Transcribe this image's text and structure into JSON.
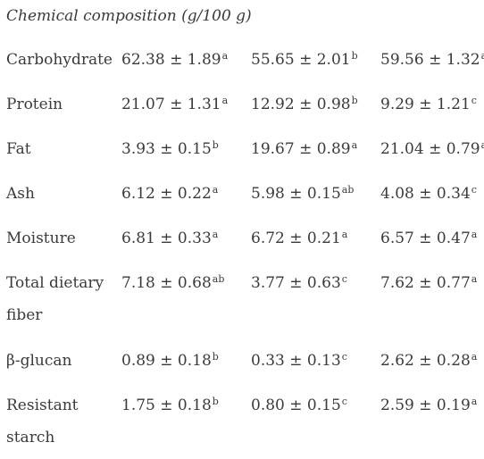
{
  "caption": "Chemical composition (g/100 g)",
  "rows": [
    {
      "label": "Carbohydrate",
      "values": [
        {
          "value": "62.38 ± 1.89",
          "sup": "a"
        },
        {
          "value": "55.65 ± 2.01",
          "sup": "b"
        },
        {
          "value": "59.56 ± 1.32",
          "sup": "ab"
        }
      ]
    },
    {
      "label": "Protein",
      "values": [
        {
          "value": "21.07 ± 1.31",
          "sup": "a"
        },
        {
          "value": "12.92 ± 0.98",
          "sup": "b"
        },
        {
          "value": "9.29 ± 1.21",
          "sup": "c"
        }
      ]
    },
    {
      "label": "Fat",
      "values": [
        {
          "value": "3.93 ± 0.15",
          "sup": "b"
        },
        {
          "value": "19.67 ± 0.89",
          "sup": "a"
        },
        {
          "value": "21.04 ± 0.79",
          "sup": "a"
        }
      ]
    },
    {
      "label": "Ash",
      "values": [
        {
          "value": "6.12 ± 0.22",
          "sup": "a"
        },
        {
          "value": "5.98 ± 0.15",
          "sup": "ab"
        },
        {
          "value": "4.08 ± 0.34",
          "sup": "c"
        }
      ]
    },
    {
      "label": "Moisture",
      "values": [
        {
          "value": "6.81 ± 0.33",
          "sup": "a"
        },
        {
          "value": "6.72 ± 0.21",
          "sup": "a"
        },
        {
          "value": "6.57 ± 0.47",
          "sup": "a"
        }
      ]
    },
    {
      "label": "Total dietary fiber",
      "values": [
        {
          "value": "7.18 ± 0.68",
          "sup": "ab"
        },
        {
          "value": "3.77 ± 0.63",
          "sup": "c"
        },
        {
          "value": "7.62 ± 0.77",
          "sup": "a"
        }
      ]
    },
    {
      "label": "β-glucan",
      "values": [
        {
          "value": "0.89 ± 0.18",
          "sup": "b"
        },
        {
          "value": "0.33 ± 0.13",
          "sup": "c"
        },
        {
          "value": "2.62 ± 0.28",
          "sup": "a"
        }
      ]
    },
    {
      "label": "Resistant starch",
      "values": [
        {
          "value": "1.75 ± 0.18",
          "sup": "b"
        },
        {
          "value": "0.80 ± 0.15",
          "sup": "c"
        },
        {
          "value": "2.59 ± 0.19",
          "sup": "a"
        }
      ]
    }
  ]
}
